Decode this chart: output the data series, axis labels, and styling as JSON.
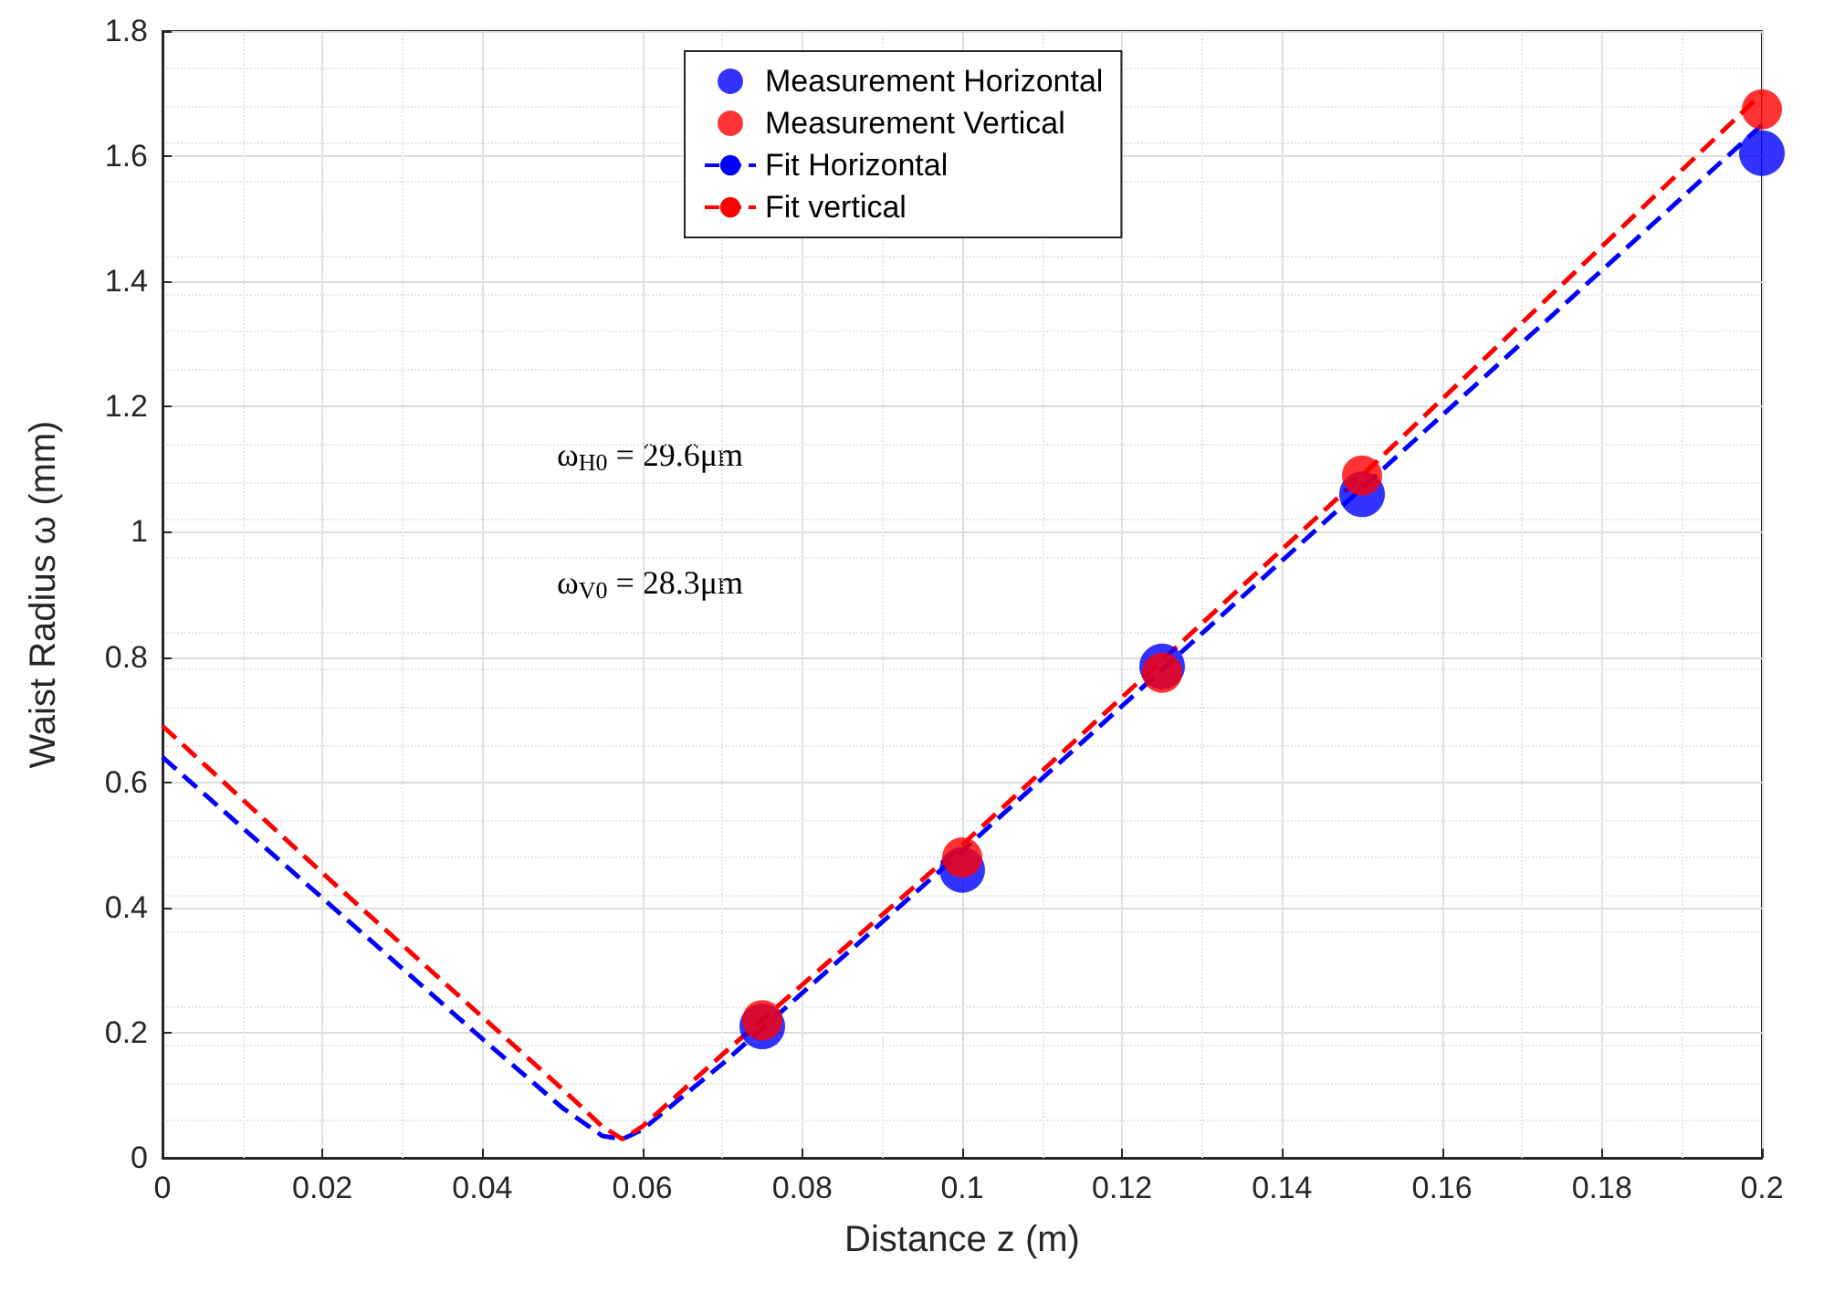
{
  "chart_data": {
    "type": "scatter",
    "xlabel": "Distance z (m)",
    "ylabel": "Waist Radius ω (mm)",
    "xlim": [
      0,
      0.2
    ],
    "xticks": [
      0,
      0.02,
      0.04,
      0.06,
      0.08,
      0.1,
      0.12,
      0.14,
      0.16,
      0.18,
      0.2
    ],
    "ylim": [
      0,
      1.8
    ],
    "yticks": [
      0,
      0.2,
      0.4,
      0.6,
      0.8,
      1,
      1.2,
      1.4,
      1.6,
      1.8
    ],
    "grid": true,
    "legend": "top",
    "annotations": [
      "ω$_{H0}$ = 29.6μm",
      "ω$_{V0}$ = 28.3μm"
    ],
    "series": [
      {
        "name": "Measurement Horizontal",
        "marker": "circle",
        "color": "#0000ff",
        "x": [
          0.075,
          0.1,
          0.125,
          0.15,
          0.2
        ],
        "values": [
          0.21,
          0.46,
          0.785,
          1.06,
          1.605
        ]
      },
      {
        "name": "Measurement Vertical",
        "marker": "circle",
        "color": "#ff0000",
        "x": [
          0.075,
          0.1,
          0.125,
          0.15,
          0.2
        ],
        "values": [
          0.22,
          0.48,
          0.775,
          1.09,
          1.675
        ]
      },
      {
        "name": "Fit Horizontal",
        "type": "line",
        "marker": "none",
        "line_style": "dashed",
        "color": "#0000ff",
        "x": [
          0,
          0.02,
          0.04,
          0.05,
          0.055,
          0.0575,
          0.06,
          0.07,
          0.1,
          0.15,
          0.2
        ],
        "values": [
          0.64,
          0.415,
          0.19,
          0.08,
          0.035,
          0.03,
          0.045,
          0.15,
          0.49,
          1.07,
          1.65
        ]
      },
      {
        "name": "Fit vertical",
        "type": "line",
        "marker": "none",
        "line_style": "dashed",
        "color": "#ff0000",
        "x": [
          0,
          0.02,
          0.04,
          0.05,
          0.055,
          0.0575,
          0.06,
          0.07,
          0.1,
          0.15,
          0.2
        ],
        "values": [
          0.69,
          0.455,
          0.225,
          0.11,
          0.05,
          0.03,
          0.05,
          0.165,
          0.5,
          1.09,
          1.7
        ]
      }
    ]
  }
}
